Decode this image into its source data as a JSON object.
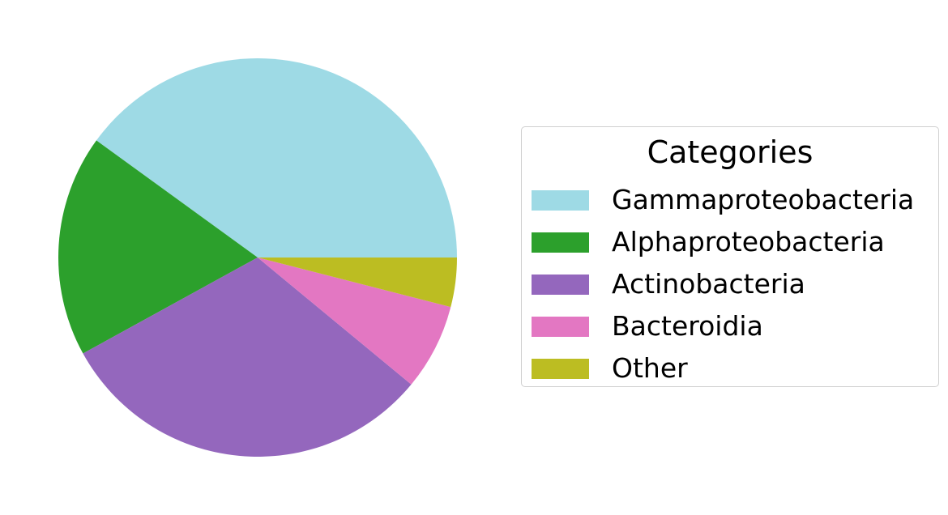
{
  "chart_data": {
    "type": "pie",
    "title": "",
    "legend_title": "Categories",
    "legend_position": "right",
    "start_angle_deg": 0,
    "direction": "counterclockwise",
    "categories": [
      "Gammaproteobacteria",
      "Alphaproteobacteria",
      "Actinobacteria",
      "Bacteroidia",
      "Other"
    ],
    "values": [
      40,
      18,
      31,
      7,
      4
    ],
    "colors": [
      "#9edae5",
      "#2ca02c",
      "#9467bd",
      "#e377c2",
      "#bcbd22"
    ]
  }
}
